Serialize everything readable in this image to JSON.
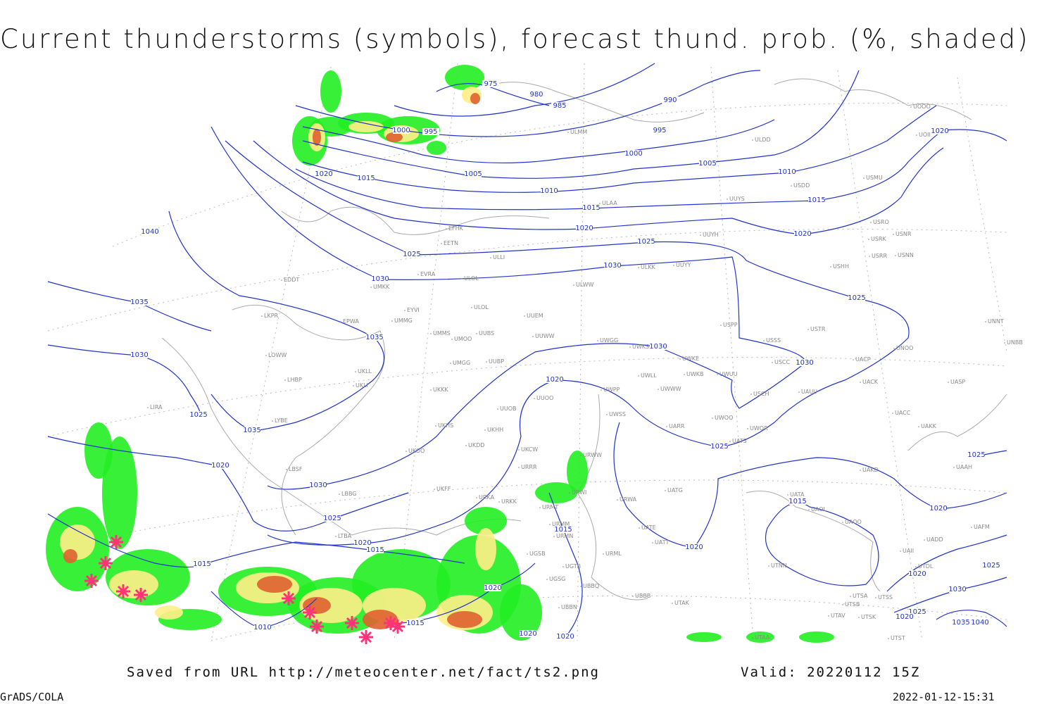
{
  "header": {
    "title": "Current thunderstorms (symbols), forecast thund. prob. (%, shaded)"
  },
  "footer": {
    "source": "Saved from URL http://meteocenter.net/fact/ts2.png",
    "valid": "Valid: 20220112 15Z",
    "software": "GrADS/COLA",
    "timestamp": "2022-01-12-15:31"
  },
  "isobar_labels": [
    975,
    980,
    985,
    990,
    995,
    995,
    1000,
    1000,
    1005,
    1005,
    1010,
    1010,
    1015,
    1015,
    1015,
    1020,
    1020,
    1020,
    1020,
    1025,
    1025,
    1025,
    1030,
    1030,
    1030,
    1030,
    1035,
    1035,
    1030,
    1040,
    1020,
    1025,
    1035,
    1020,
    1030,
    1025,
    1020,
    1015,
    1015,
    1010,
    1015,
    1020,
    1020,
    1020,
    1015,
    1020,
    1025,
    1015,
    1020,
    1025,
    1025,
    1020,
    1030,
    1025,
    1020,
    1035,
    1040
  ],
  "stations": [
    "UOOO",
    "UOII",
    "ULDD",
    "ULMM",
    "USMU",
    "USDD",
    "ULAA",
    "UUYS",
    "USRO",
    "USRK",
    "USNR",
    "EFHK",
    "EETN",
    "UUYH",
    "ULLI",
    "USRR",
    "USNN",
    "UUYY",
    "ULKK",
    "USHH",
    "EVRA",
    "ULOL",
    "EDDT",
    "UMKK",
    "ULWW",
    "EYVI",
    "ULOL",
    "UUEM",
    "LKPR",
    "EPWA",
    "UMMG",
    "USPP",
    "USTR",
    "UMMS",
    "UMOO",
    "UUBS",
    "UUWW",
    "UWGG",
    "UWKS",
    "USSS",
    "UNNT",
    "UNBB",
    "UMGG",
    "UUBP",
    "UWKE",
    "UWKB",
    "UWUU",
    "USCC",
    "UACP",
    "UNOO",
    "LOWW",
    "UKLL",
    "LHBP",
    "UKLI",
    "UWLL",
    "UWWW",
    "UWPP",
    "UKKK",
    "UUOO",
    "USCH",
    "UAUU",
    "UACK",
    "UASP",
    "LIRA",
    "LYBE",
    "UUOB",
    "UWSS",
    "UACC",
    "UKHS",
    "UKHH",
    "UARR",
    "UWOO",
    "UWOR",
    "UAKK",
    "LBSF",
    "UKOO",
    "UKDD",
    "UKCW",
    "URWW",
    "UATS",
    "UAKD",
    "UAAH",
    "URRR",
    "UKFF",
    "URKA",
    "URKK",
    "URWI",
    "UATG",
    "UATA",
    "UAOL",
    "UAOO",
    "LBBG",
    "URMT",
    "URWA",
    "URMM",
    "URMN",
    "UATE",
    "UATT",
    "UAFM",
    "UADD",
    "LTBA",
    "URML",
    "UGSB",
    "UGTB",
    "UTNN",
    "UAII",
    "UTDL",
    "UBBB",
    "UTAK",
    "UBBN",
    "UTSA",
    "UTSS",
    "UTSB",
    "UTAV",
    "UTSK",
    "UTAA",
    "UTST",
    "UGSG",
    "UBBQ"
  ]
}
